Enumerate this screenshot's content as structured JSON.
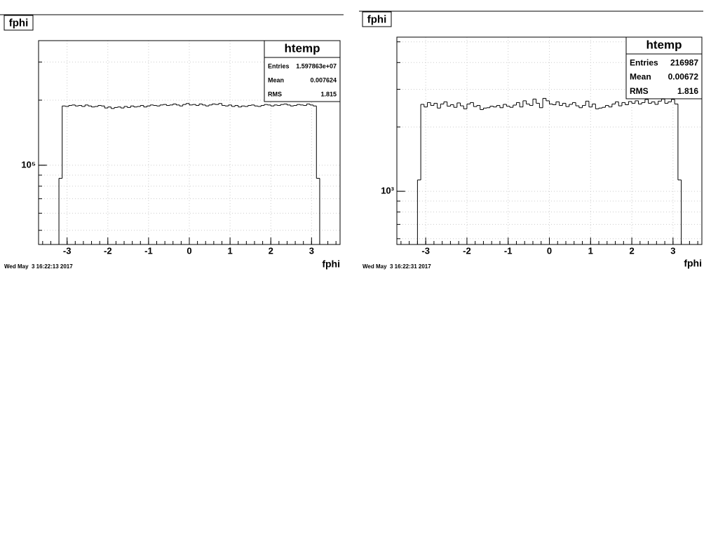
{
  "chart_data": [
    {
      "type": "histogram",
      "title": "fphi",
      "xlabel": "fphi",
      "timestamp": "Wed May  3 16:22:13 2017",
      "color": "#000000",
      "log_y": true,
      "grid": true,
      "xlim": [
        -3.7,
        3.7
      ],
      "xticks": [
        -3,
        -2,
        -1,
        0,
        1,
        2,
        3
      ],
      "ylim": [
        43000,
        377000
      ],
      "yticks": [
        {
          "value": 100000,
          "label": "10⁵"
        }
      ],
      "bins": [
        -3.2,
        -3.12,
        -3.04,
        -2.96,
        -2.88,
        -2.8,
        -2.72,
        -2.64,
        -2.56,
        -2.48,
        -2.4,
        -2.32,
        -2.24,
        -2.16,
        -2.08,
        -2,
        -1.92,
        -1.84,
        -1.76,
        -1.68,
        -1.6,
        -1.52,
        -1.44,
        -1.36,
        -1.28,
        -1.2,
        -1.12,
        -1.04,
        -0.96,
        -0.88,
        -0.8,
        -0.72,
        -0.64,
        -0.56,
        -0.48,
        -0.4,
        -0.32,
        -0.24,
        -0.16,
        -0.08,
        0,
        0.08,
        0.16,
        0.24,
        0.32,
        0.4,
        0.48,
        0.56,
        0.64,
        0.72,
        0.8,
        0.88,
        0.96,
        1.04,
        1.12,
        1.2,
        1.28,
        1.36,
        1.44,
        1.52,
        1.6,
        1.68,
        1.76,
        1.84,
        1.92,
        2,
        2.08,
        2.16,
        2.24,
        2.32,
        2.4,
        2.48,
        2.56,
        2.64,
        2.72,
        2.8,
        2.88,
        2.96,
        3.04,
        3.12,
        3.2
      ],
      "values": [
        87000,
        188000,
        187000,
        189000,
        190000,
        188000,
        189000,
        187000,
        190000,
        188000,
        186000,
        187000,
        189000,
        188000,
        184000,
        186000,
        183000,
        185000,
        186000,
        184000,
        187000,
        185000,
        188000,
        186000,
        187000,
        189000,
        186000,
        188000,
        190000,
        189000,
        188000,
        190000,
        191000,
        189000,
        190000,
        192000,
        190000,
        188000,
        191000,
        193000,
        190000,
        191000,
        189000,
        192000,
        190000,
        188000,
        190000,
        192000,
        191000,
        193000,
        189000,
        188000,
        190000,
        187000,
        189000,
        186000,
        188000,
        187000,
        189000,
        190000,
        188000,
        187000,
        189000,
        191000,
        190000,
        188000,
        190000,
        189000,
        191000,
        192000,
        190000,
        188000,
        189000,
        191000,
        190000,
        189000,
        192000,
        190000,
        188000,
        87000
      ],
      "stats": {
        "name": "htemp",
        "rows": [
          [
            "Entries",
            "1.597863e+07"
          ],
          [
            "Mean",
            "0.007624"
          ],
          [
            "RMS",
            "1.815"
          ]
        ]
      }
    },
    {
      "type": "histogram",
      "title": "fphi",
      "xlabel": "fphi",
      "timestamp": "Wed May  3 16:22:31 2017",
      "color": "#000000",
      "log_y": true,
      "grid": true,
      "xlim": [
        -3.7,
        3.7
      ],
      "xticks": [
        -3,
        -2,
        -1,
        0,
        1,
        2,
        3
      ],
      "ylim": [
        564,
        5260
      ],
      "yticks": [
        {
          "value": 1000,
          "label": "10³"
        }
      ],
      "bins": [
        -3.2,
        -3.12,
        -3.04,
        -2.96,
        -2.88,
        -2.8,
        -2.72,
        -2.64,
        -2.56,
        -2.48,
        -2.4,
        -2.32,
        -2.24,
        -2.16,
        -2.08,
        -2,
        -1.92,
        -1.84,
        -1.76,
        -1.68,
        -1.6,
        -1.52,
        -1.44,
        -1.36,
        -1.28,
        -1.2,
        -1.12,
        -1.04,
        -0.96,
        -0.88,
        -0.8,
        -0.72,
        -0.64,
        -0.56,
        -0.48,
        -0.4,
        -0.32,
        -0.24,
        -0.16,
        -0.08,
        0,
        0.08,
        0.16,
        0.24,
        0.32,
        0.4,
        0.48,
        0.56,
        0.64,
        0.72,
        0.8,
        0.88,
        0.96,
        1.04,
        1.12,
        1.2,
        1.28,
        1.36,
        1.44,
        1.52,
        1.6,
        1.68,
        1.76,
        1.84,
        1.92,
        2,
        2.08,
        2.16,
        2.24,
        2.32,
        2.4,
        2.48,
        2.56,
        2.64,
        2.72,
        2.8,
        2.88,
        2.96,
        3.04,
        3.12,
        3.2
      ],
      "values": [
        1130,
        2550,
        2480,
        2600,
        2520,
        2580,
        2450,
        2560,
        2620,
        2500,
        2540,
        2470,
        2590,
        2510,
        2430,
        2560,
        2600,
        2490,
        2520,
        2410,
        2450,
        2460,
        2500,
        2480,
        2520,
        2460,
        2550,
        2500,
        2470,
        2530,
        2600,
        2480,
        2650,
        2560,
        2520,
        2700,
        2580,
        2460,
        2720,
        2650,
        2560,
        2540,
        2620,
        2520,
        2580,
        2490,
        2550,
        2600,
        2510,
        2460,
        2520,
        2640,
        2480,
        2560,
        2430,
        2450,
        2470,
        2520,
        2480,
        2560,
        2620,
        2510,
        2600,
        2540,
        2630,
        2580,
        2650,
        2560,
        2600,
        2690,
        2580,
        2620,
        2550,
        2640,
        2700,
        2580,
        2620,
        2690,
        2560,
        1130
      ],
      "stats": {
        "name": "htemp",
        "rows": [
          [
            "Entries",
            "216987"
          ],
          [
            "Mean",
            "0.00672"
          ],
          [
            "RMS",
            "1.816"
          ]
        ]
      }
    }
  ]
}
